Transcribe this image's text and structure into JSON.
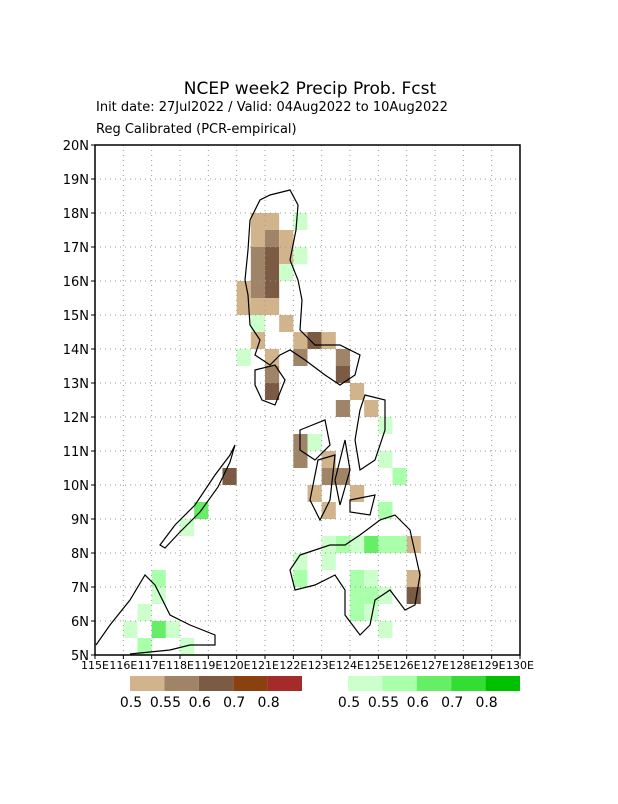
{
  "chart_data": {
    "type": "grid-map",
    "title": "NCEP week2 Precip Prob. Fcst",
    "subtitle": "Init date: 27Jul2022 / Valid: 04Aug2022 to 10Aug2022",
    "method": "Reg Calibrated (PCR-empirical)",
    "xlim": [
      115,
      130
    ],
    "ylim": [
      5,
      20
    ],
    "xticks": [
      {
        "value": 115,
        "label": "115E"
      },
      {
        "value": 116,
        "label": "116E"
      },
      {
        "value": 117,
        "label": "117E"
      },
      {
        "value": 118,
        "label": "118E"
      },
      {
        "value": 119,
        "label": "119E"
      },
      {
        "value": 120,
        "label": "120E"
      },
      {
        "value": 121,
        "label": "121E"
      },
      {
        "value": 122,
        "label": "122E"
      },
      {
        "value": 123,
        "label": "123E"
      },
      {
        "value": 124,
        "label": "124E"
      },
      {
        "value": 125,
        "label": "125E"
      },
      {
        "value": 126,
        "label": "126E"
      },
      {
        "value": 127,
        "label": "127E"
      },
      {
        "value": 128,
        "label": "128E"
      },
      {
        "value": 129,
        "label": "129E"
      },
      {
        "value": 130,
        "label": "130E"
      }
    ],
    "yticks": [
      {
        "value": 5,
        "label": "5N"
      },
      {
        "value": 6,
        "label": "6N"
      },
      {
        "value": 7,
        "label": "7N"
      },
      {
        "value": 8,
        "label": "8N"
      },
      {
        "value": 9,
        "label": "9N"
      },
      {
        "value": 10,
        "label": "10N"
      },
      {
        "value": 11,
        "label": "11N"
      },
      {
        "value": 12,
        "label": "12N"
      },
      {
        "value": 13,
        "label": "13N"
      },
      {
        "value": 14,
        "label": "14N"
      },
      {
        "value": 15,
        "label": "15N"
      },
      {
        "value": 16,
        "label": "16N"
      },
      {
        "value": 17,
        "label": "17N"
      },
      {
        "value": 18,
        "label": "18N"
      },
      {
        "value": 19,
        "label": "19N"
      },
      {
        "value": 20,
        "label": "20N"
      }
    ],
    "grid": true,
    "levels": [
      0.5,
      0.55,
      0.6,
      0.7,
      0.8
    ],
    "dry_colors": [
      "#d2b48c",
      "#a08468",
      "#7b5b43",
      "#8b4010",
      "#a52a2a"
    ],
    "wet_colors": [
      "#ccffcc",
      "#aaffaa",
      "#66ee66",
      "#33dd33",
      "#00c000"
    ],
    "dry": [
      [
        120.5,
        17.5,
        0.5
      ],
      [
        121,
        17.5,
        0.5
      ],
      [
        120.5,
        17,
        0.5
      ],
      [
        121,
        17,
        0.55
      ],
      [
        121.5,
        17,
        0.5
      ],
      [
        120.5,
        16.5,
        0.55
      ],
      [
        121,
        16.5,
        0.6
      ],
      [
        121.5,
        16.5,
        0.5
      ],
      [
        120.5,
        16,
        0.55
      ],
      [
        121,
        16,
        0.6
      ],
      [
        120,
        15.5,
        0.5
      ],
      [
        120.5,
        15.5,
        0.55
      ],
      [
        121,
        15.5,
        0.6
      ],
      [
        120,
        15,
        0.5
      ],
      [
        120.5,
        15,
        0.5
      ],
      [
        121,
        15,
        0.5
      ],
      [
        121.5,
        14.5,
        0.5
      ],
      [
        120.5,
        14,
        0.5
      ],
      [
        122,
        14,
        0.5
      ],
      [
        122.5,
        14,
        0.6
      ],
      [
        123,
        14,
        0.5
      ],
      [
        121,
        13.5,
        0.5
      ],
      [
        122,
        13.5,
        0.55
      ],
      [
        123.5,
        13.5,
        0.55
      ],
      [
        121,
        13,
        0.55
      ],
      [
        123.5,
        13,
        0.6
      ],
      [
        121,
        12.5,
        0.6
      ],
      [
        124,
        12.5,
        0.5
      ],
      [
        123.5,
        12,
        0.55
      ],
      [
        124.5,
        12,
        0.5
      ],
      [
        122,
        11,
        0.55
      ],
      [
        122,
        10.5,
        0.55
      ],
      [
        123,
        10.5,
        0.5
      ],
      [
        123,
        10,
        0.55
      ],
      [
        123.5,
        10,
        0.55
      ],
      [
        122.5,
        9.5,
        0.5
      ],
      [
        124,
        9.5,
        0.5
      ],
      [
        123,
        9,
        0.5
      ],
      [
        119.5,
        10,
        0.6
      ],
      [
        126,
        8,
        0.5
      ],
      [
        126,
        7,
        0.5
      ],
      [
        126,
        6.5,
        0.6
      ]
    ],
    "wet": [
      [
        122,
        17.5,
        0.5
      ],
      [
        122,
        16.5,
        0.5
      ],
      [
        121.5,
        16,
        0.5
      ],
      [
        120.5,
        14.5,
        0.5
      ],
      [
        120,
        13.5,
        0.5
      ],
      [
        122.5,
        11,
        0.5
      ],
      [
        125,
        11.5,
        0.5
      ],
      [
        125,
        10.5,
        0.5
      ],
      [
        125.5,
        10,
        0.55
      ],
      [
        125,
        9,
        0.55
      ],
      [
        118.5,
        9,
        0.6
      ],
      [
        118,
        8.5,
        0.5
      ],
      [
        123,
        8,
        0.5
      ],
      [
        123.5,
        8,
        0.55
      ],
      [
        124,
        8,
        0.5
      ],
      [
        124.5,
        8,
        0.6
      ],
      [
        125,
        8,
        0.55
      ],
      [
        125.5,
        8,
        0.55
      ],
      [
        122,
        7,
        0.55
      ],
      [
        122,
        7.5,
        0.5
      ],
      [
        123,
        7.5,
        0.5
      ],
      [
        124,
        7,
        0.55
      ],
      [
        124.5,
        7,
        0.5
      ],
      [
        124,
        6.5,
        0.55
      ],
      [
        124.5,
        6.5,
        0.55
      ],
      [
        125,
        6.5,
        0.5
      ],
      [
        124,
        6,
        0.55
      ],
      [
        124.5,
        6,
        0.5
      ],
      [
        125,
        5.5,
        0.5
      ],
      [
        116.5,
        5,
        0.55
      ],
      [
        117,
        5.5,
        0.6
      ],
      [
        117.5,
        5.5,
        0.5
      ],
      [
        116.5,
        6,
        0.5
      ],
      [
        117,
        6.5,
        0.5
      ],
      [
        117,
        7,
        0.55
      ],
      [
        118,
        5,
        0.5
      ],
      [
        116,
        5.5,
        0.5
      ]
    ]
  }
}
